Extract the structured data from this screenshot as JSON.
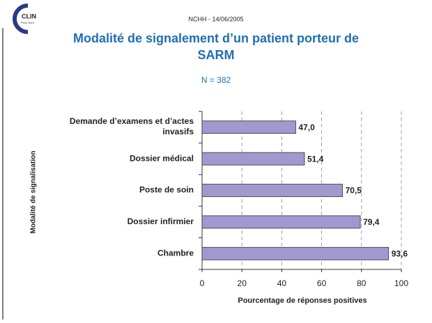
{
  "header": {
    "text": "NCHH - 14/06/2005",
    "logo": {
      "main": "CLIN",
      "sub": "Paris Nord"
    }
  },
  "chart_data": {
    "type": "barh",
    "title": "Modalité de signalement d’un patient porteur de SARM",
    "subtitle": "N = 382",
    "x_label": "Pourcentage de réponses positives",
    "y_label": "Modalité de signalisation",
    "categories": [
      "Demande d’examens et d’actes invasifs",
      "Dossier médical",
      "Poste de soin",
      "Dossier infirmier",
      "Chambre"
    ],
    "values": [
      47.0,
      51.4,
      70.5,
      79.4,
      93.6
    ],
    "value_labels": [
      "47,0",
      "51,4",
      "70,5",
      "79,4",
      "93,6"
    ],
    "color": "#9f99cf",
    "xlim": [
      0,
      100
    ],
    "xticks": [
      0,
      20,
      40,
      60,
      80,
      100
    ],
    "grid": true
  }
}
